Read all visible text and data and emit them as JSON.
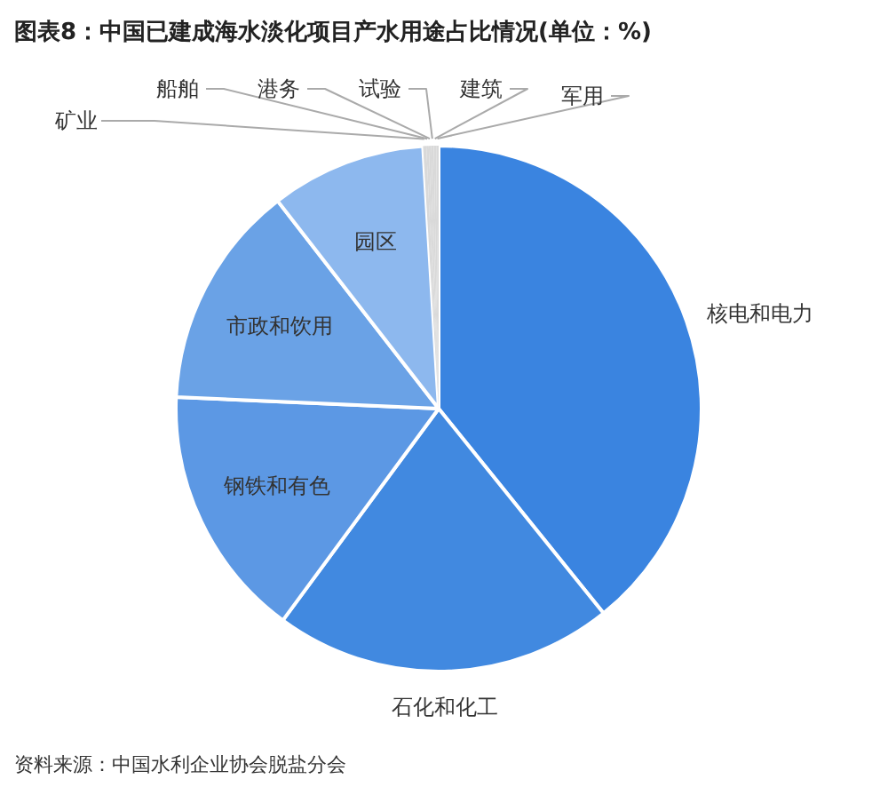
{
  "chart_data": {
    "type": "pie",
    "title": "图表8：中国已建成海水淡化项目产水用途占比情况(单位：%)",
    "categories": [
      "核电和电力",
      "石化和化工",
      "钢铁和有色",
      "市政和饮用",
      "园区",
      "矿业",
      "船舶",
      "港务",
      "试验",
      "建筑",
      "军用"
    ],
    "values": [
      39.2,
      20.9,
      15.6,
      13.8,
      9.55,
      0.2,
      0.15,
      0.15,
      0.15,
      0.15,
      0.15
    ],
    "colors": [
      "#3a84e0",
      "#4189e0",
      "#5c98e4",
      "#6aa2e6",
      "#8db8ee",
      "#d9d9d9",
      "#d9d9d9",
      "#d9d9d9",
      "#d9d9d9",
      "#d9d9d9",
      "#d9d9d9"
    ],
    "annotations": [
      "资料来源：中国水利企业协会脱盐分会"
    ]
  }
}
